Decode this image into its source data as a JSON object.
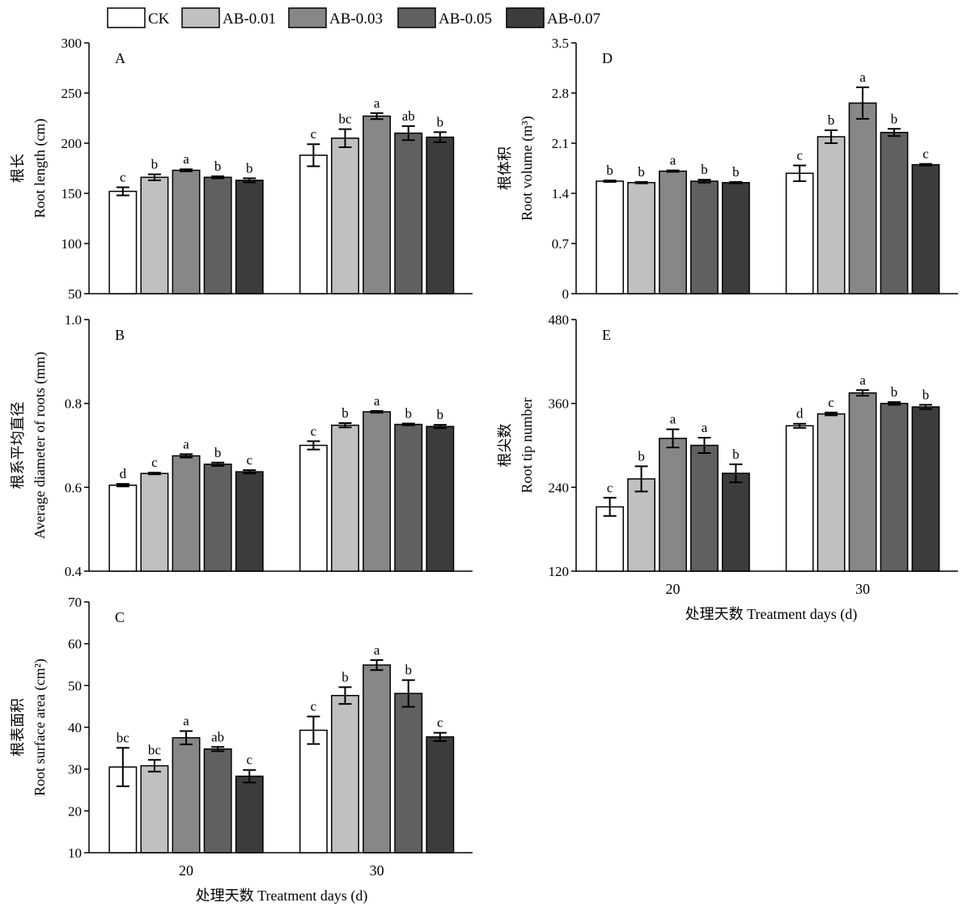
{
  "legend": {
    "entries": [
      {
        "name": "CK",
        "color": "#ffffff"
      },
      {
        "name": "AB-0.01",
        "color": "#c0c0c0"
      },
      {
        "name": "AB-0.03",
        "color": "#878787"
      },
      {
        "name": "AB-0.05",
        "color": "#606060"
      },
      {
        "name": "AB-0.07",
        "color": "#3c3c3c"
      }
    ]
  },
  "x_axis_label": "处理天数 Treatment days (d)",
  "chart_data": [
    {
      "type": "bar",
      "panel": "A",
      "ylabel_cn": "根长",
      "ylabel_en": "Root length (cm)",
      "categories": [
        "20",
        "30"
      ],
      "ylim": [
        50,
        300
      ],
      "yticks": [
        "50",
        "100",
        "150",
        "200",
        "250",
        "300"
      ],
      "series": [
        {
          "name": "CK",
          "values": [
            152,
            188
          ],
          "errors": [
            4,
            11
          ],
          "letters": [
            "c",
            "c"
          ]
        },
        {
          "name": "AB-0.01",
          "values": [
            166,
            205
          ],
          "errors": [
            3,
            9
          ],
          "letters": [
            "b",
            "bc"
          ]
        },
        {
          "name": "AB-0.03",
          "values": [
            173,
            227
          ],
          "errors": [
            1,
            3
          ],
          "letters": [
            "a",
            "a"
          ]
        },
        {
          "name": "AB-0.05",
          "values": [
            166,
            210
          ],
          "errors": [
            1,
            7
          ],
          "letters": [
            "b",
            "ab"
          ]
        },
        {
          "name": "AB-0.07",
          "values": [
            163,
            206
          ],
          "errors": [
            2,
            5
          ],
          "letters": [
            "b",
            "b"
          ]
        }
      ]
    },
    {
      "type": "bar",
      "panel": "B",
      "ylabel_cn": "根系平均直径",
      "ylabel_en": "Average diameter of roots (mm)",
      "categories": [
        "20",
        "30"
      ],
      "ylim": [
        0.4,
        1.0
      ],
      "yticks": [
        "0.4",
        "0.6",
        "0.8",
        "1.0"
      ],
      "series": [
        {
          "name": "CK",
          "values": [
            0.605,
            0.7
          ],
          "errors": [
            0.003,
            0.01
          ],
          "letters": [
            "d",
            "c"
          ]
        },
        {
          "name": "AB-0.01",
          "values": [
            0.633,
            0.748
          ],
          "errors": [
            0.002,
            0.005
          ],
          "letters": [
            "c",
            "b"
          ]
        },
        {
          "name": "AB-0.03",
          "values": [
            0.675,
            0.78
          ],
          "errors": [
            0.004,
            0.002
          ],
          "letters": [
            "a",
            "a"
          ]
        },
        {
          "name": "AB-0.05",
          "values": [
            0.655,
            0.75
          ],
          "errors": [
            0.004,
            0.002
          ],
          "letters": [
            "b",
            "b"
          ]
        },
        {
          "name": "AB-0.07",
          "values": [
            0.637,
            0.745
          ],
          "errors": [
            0.004,
            0.004
          ],
          "letters": [
            "c",
            "b"
          ]
        }
      ]
    },
    {
      "type": "bar",
      "panel": "C",
      "ylabel_cn": "根表面积",
      "ylabel_en": "Root surface area (cm²)",
      "categories": [
        "20",
        "30"
      ],
      "ylim": [
        10,
        70
      ],
      "yticks": [
        "10",
        "20",
        "30",
        "40",
        "50",
        "60",
        "70"
      ],
      "series": [
        {
          "name": "CK",
          "values": [
            30.5,
            39.3
          ],
          "errors": [
            4.6,
            3.3
          ],
          "letters": [
            "bc",
            "c"
          ]
        },
        {
          "name": "AB-0.01",
          "values": [
            30.8,
            47.6
          ],
          "errors": [
            1.4,
            2.0
          ],
          "letters": [
            "bc",
            "b"
          ]
        },
        {
          "name": "AB-0.03",
          "values": [
            37.5,
            54.9
          ],
          "errors": [
            1.6,
            1.2
          ],
          "letters": [
            "a",
            "a"
          ]
        },
        {
          "name": "AB-0.05",
          "values": [
            34.8,
            48.1
          ],
          "errors": [
            0.5,
            3.2
          ],
          "letters": [
            "ab",
            "b"
          ]
        },
        {
          "name": "AB-0.07",
          "values": [
            28.3,
            37.7
          ],
          "errors": [
            1.5,
            1.0
          ],
          "letters": [
            "c",
            "c"
          ]
        }
      ]
    },
    {
      "type": "bar",
      "panel": "D",
      "ylabel_cn": "根体积",
      "ylabel_en": "Root volume (m³)",
      "categories": [
        "20",
        "30"
      ],
      "ylim": [
        0,
        3.5
      ],
      "yticks": [
        "0",
        "0.7",
        "1.4",
        "2.1",
        "2.8",
        "3.5"
      ],
      "series": [
        {
          "name": "CK",
          "values": [
            1.57,
            1.68
          ],
          "errors": [
            0.01,
            0.11
          ],
          "letters": [
            "b",
            "c"
          ]
        },
        {
          "name": "AB-0.01",
          "values": [
            1.55,
            2.19
          ],
          "errors": [
            0.01,
            0.09
          ],
          "letters": [
            "b",
            "b"
          ]
        },
        {
          "name": "AB-0.03",
          "values": [
            1.71,
            2.66
          ],
          "errors": [
            0.01,
            0.22
          ],
          "letters": [
            "a",
            "a"
          ]
        },
        {
          "name": "AB-0.05",
          "values": [
            1.57,
            2.25
          ],
          "errors": [
            0.02,
            0.05
          ],
          "letters": [
            "b",
            "b"
          ]
        },
        {
          "name": "AB-0.07",
          "values": [
            1.55,
            1.8
          ],
          "errors": [
            0.01,
            0.01
          ],
          "letters": [
            "b",
            "c"
          ]
        }
      ]
    },
    {
      "type": "bar",
      "panel": "E",
      "ylabel_cn": "根尖数",
      "ylabel_en": "Root tip number",
      "categories": [
        "20",
        "30"
      ],
      "ylim": [
        120,
        480
      ],
      "yticks": [
        "120",
        "240",
        "360",
        "480"
      ],
      "series": [
        {
          "name": "CK",
          "values": [
            212,
            328
          ],
          "errors": [
            13,
            3
          ],
          "letters": [
            "c",
            "d"
          ]
        },
        {
          "name": "AB-0.01",
          "values": [
            252,
            345
          ],
          "errors": [
            18,
            2
          ],
          "letters": [
            "b",
            "c"
          ]
        },
        {
          "name": "AB-0.03",
          "values": [
            310,
            375
          ],
          "errors": [
            13,
            4
          ],
          "letters": [
            "a",
            "a"
          ]
        },
        {
          "name": "AB-0.05",
          "values": [
            300,
            360
          ],
          "errors": [
            11,
            2
          ],
          "letters": [
            "a",
            "b"
          ]
        },
        {
          "name": "AB-0.07",
          "values": [
            260,
            355
          ],
          "errors": [
            13,
            3
          ],
          "letters": [
            "b",
            "b"
          ]
        }
      ]
    }
  ]
}
